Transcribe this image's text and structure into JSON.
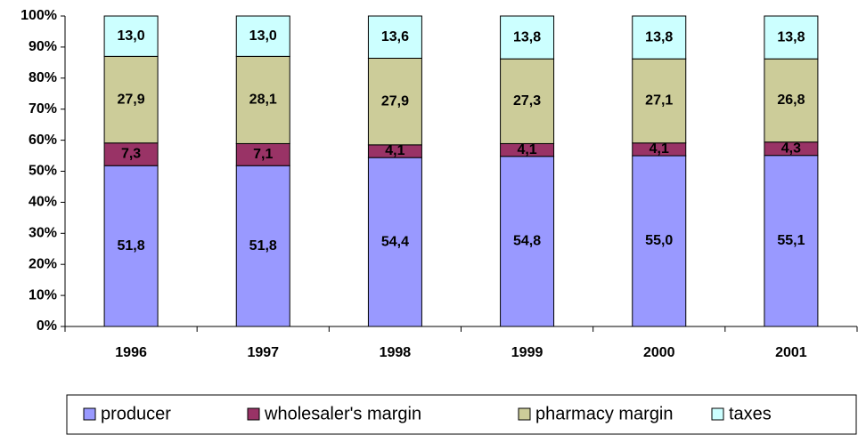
{
  "chart_data": {
    "type": "stacked_bar",
    "categories": [
      "1996",
      "1997",
      "1998",
      "1999",
      "2000",
      "2001"
    ],
    "series": [
      {
        "name": "producer",
        "color": "#9999ff",
        "values": [
          51.8,
          51.8,
          54.4,
          54.8,
          55.0,
          55.1
        ],
        "value_labels": [
          "51,8",
          "51,8",
          "54,4",
          "54,8",
          "55,0",
          "55,1"
        ]
      },
      {
        "name": "wholesaler's margin",
        "color": "#993366",
        "values": [
          7.3,
          7.1,
          4.1,
          4.1,
          4.1,
          4.3
        ],
        "value_labels": [
          "7,3",
          "7,1",
          "4,1",
          "4,1",
          "4,1",
          "4,3"
        ]
      },
      {
        "name": "pharmacy margin",
        "color": "#cccc99",
        "values": [
          27.9,
          28.1,
          27.9,
          27.3,
          27.1,
          26.8
        ],
        "value_labels": [
          "27,9",
          "28,1",
          "27,9",
          "27,3",
          "27,1",
          "26,8"
        ]
      },
      {
        "name": "taxes",
        "color": "#ccffff",
        "values": [
          13.0,
          13.0,
          13.6,
          13.8,
          13.8,
          13.8
        ],
        "value_labels": [
          "13,0",
          "13,0",
          "13,6",
          "13,8",
          "13,8",
          "13,8"
        ]
      }
    ],
    "ylim": [
      0,
      100
    ],
    "yticks": [
      {
        "value": 0,
        "label": "0%"
      },
      {
        "value": 10,
        "label": "10%"
      },
      {
        "value": 20,
        "label": "20%"
      },
      {
        "value": 30,
        "label": "30%"
      },
      {
        "value": 40,
        "label": "40%"
      },
      {
        "value": 50,
        "label": "50%"
      },
      {
        "value": 60,
        "label": "60%"
      },
      {
        "value": 70,
        "label": "70%"
      },
      {
        "value": 80,
        "label": "80%"
      },
      {
        "value": 90,
        "label": "90%"
      },
      {
        "value": 100,
        "label": "100%"
      }
    ],
    "legend": "bottom"
  }
}
